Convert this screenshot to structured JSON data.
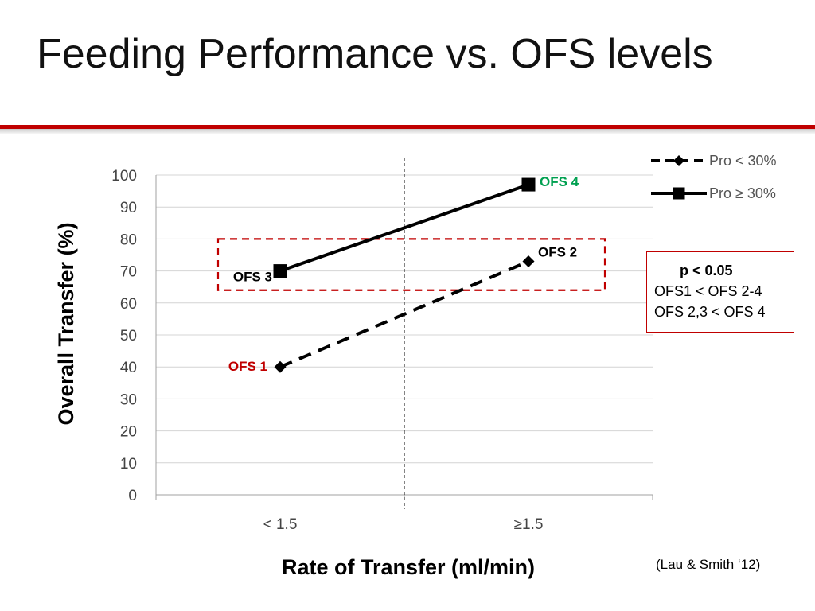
{
  "slide": {
    "title": "Feeding Performance vs. OFS levels",
    "citation": "(Lau & Smith ‘12)",
    "stats": {
      "title": "p < 0.05",
      "lines": [
        "OFS1 < OFS 2-4",
        "OFS 2,3 < OFS 4"
      ]
    }
  },
  "colors": {
    "accent": "#c00000",
    "ofs1": "#c00000",
    "ofs4": "#00a050",
    "series": "#000000"
  },
  "chart_data": {
    "type": "line",
    "title": "",
    "xlabel": "Rate of Transfer (ml/min)",
    "ylabel": "Overall Transfer (%)",
    "categories": [
      "< 1.5",
      "≥1.5"
    ],
    "ylim": [
      0,
      100
    ],
    "yticks": [
      0,
      10,
      20,
      30,
      40,
      50,
      60,
      70,
      80,
      90,
      100
    ],
    "grid": true,
    "legend_position": "top-right",
    "series": [
      {
        "name": "Pro < 30%",
        "values": [
          40,
          73
        ],
        "style": "dashed",
        "marker": "diamond"
      },
      {
        "name": "Pro ≥ 30%",
        "values": [
          70,
          97
        ],
        "style": "solid",
        "marker": "square"
      }
    ],
    "annotations": [
      {
        "label": "OFS 1",
        "series": 0,
        "index": 0,
        "color_key": "ofs1"
      },
      {
        "label": "OFS 2",
        "series": 0,
        "index": 1,
        "color_key": "series"
      },
      {
        "label": "OFS 3",
        "series": 1,
        "index": 0,
        "color_key": "series"
      },
      {
        "label": "OFS 4",
        "series": 1,
        "index": 1,
        "color_key": "ofs4"
      }
    ],
    "highlight_range": [
      64,
      80
    ]
  }
}
